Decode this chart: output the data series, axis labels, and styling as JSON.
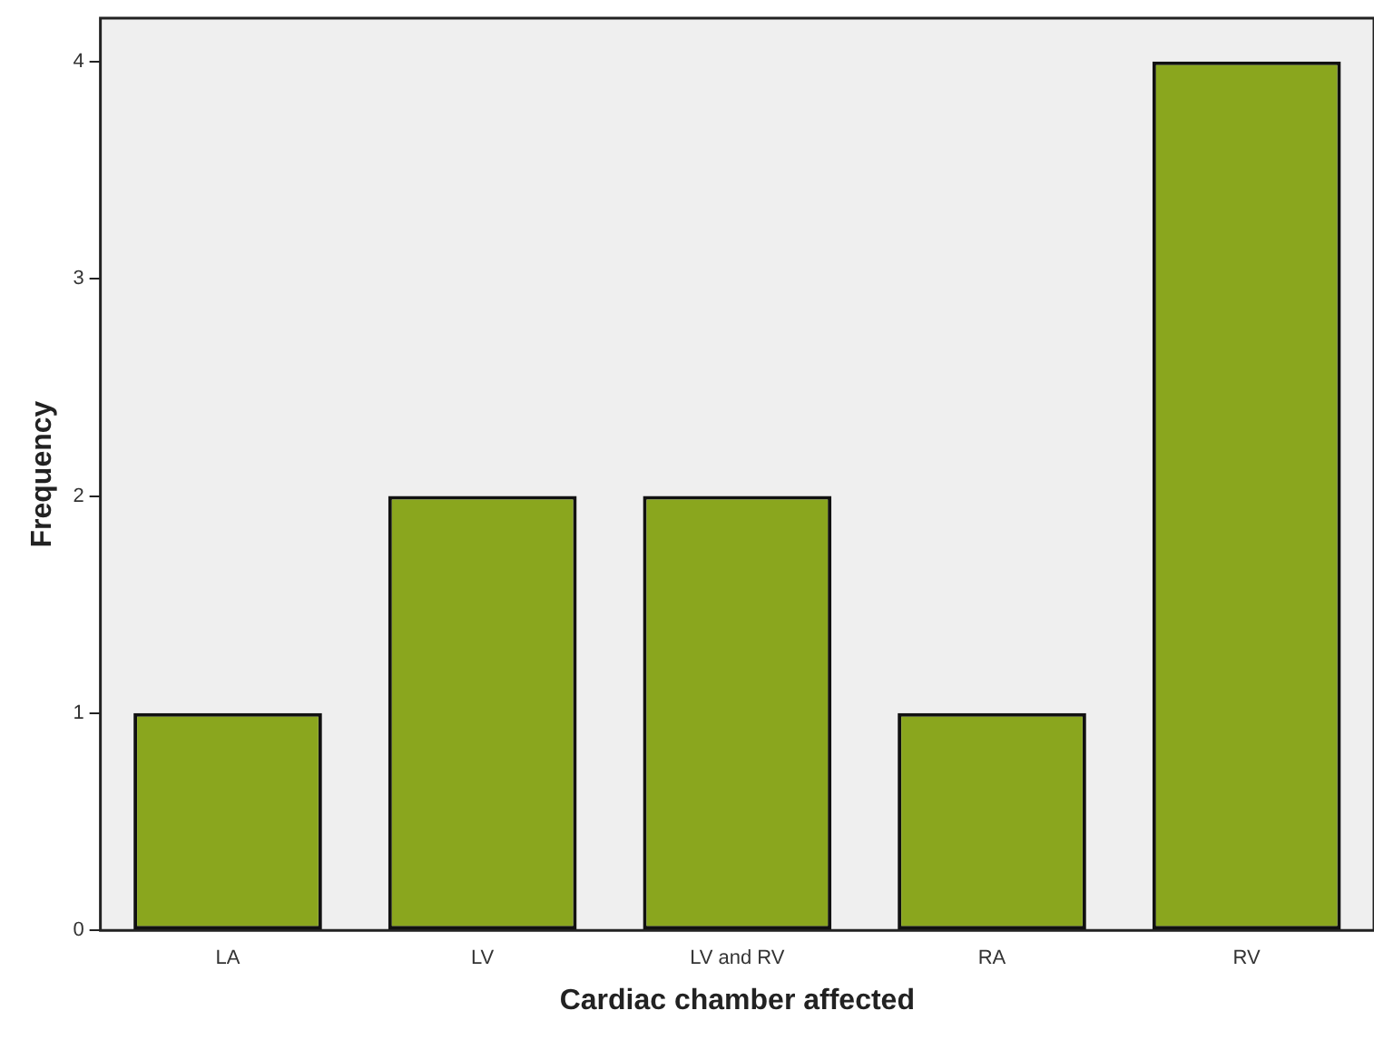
{
  "chart_data": {
    "type": "bar",
    "xlabel": "Cardiac chamber affected",
    "ylabel": "Frequency",
    "categories": [
      "LA",
      "LV",
      "LV and RV",
      "RA",
      "RV"
    ],
    "values": [
      1,
      2,
      2,
      1,
      4
    ],
    "color": "#8aa61e",
    "ylim": [
      0,
      4.2
    ],
    "yticks": [
      0,
      1,
      2,
      3,
      4
    ],
    "grid": false,
    "legend": false
  }
}
